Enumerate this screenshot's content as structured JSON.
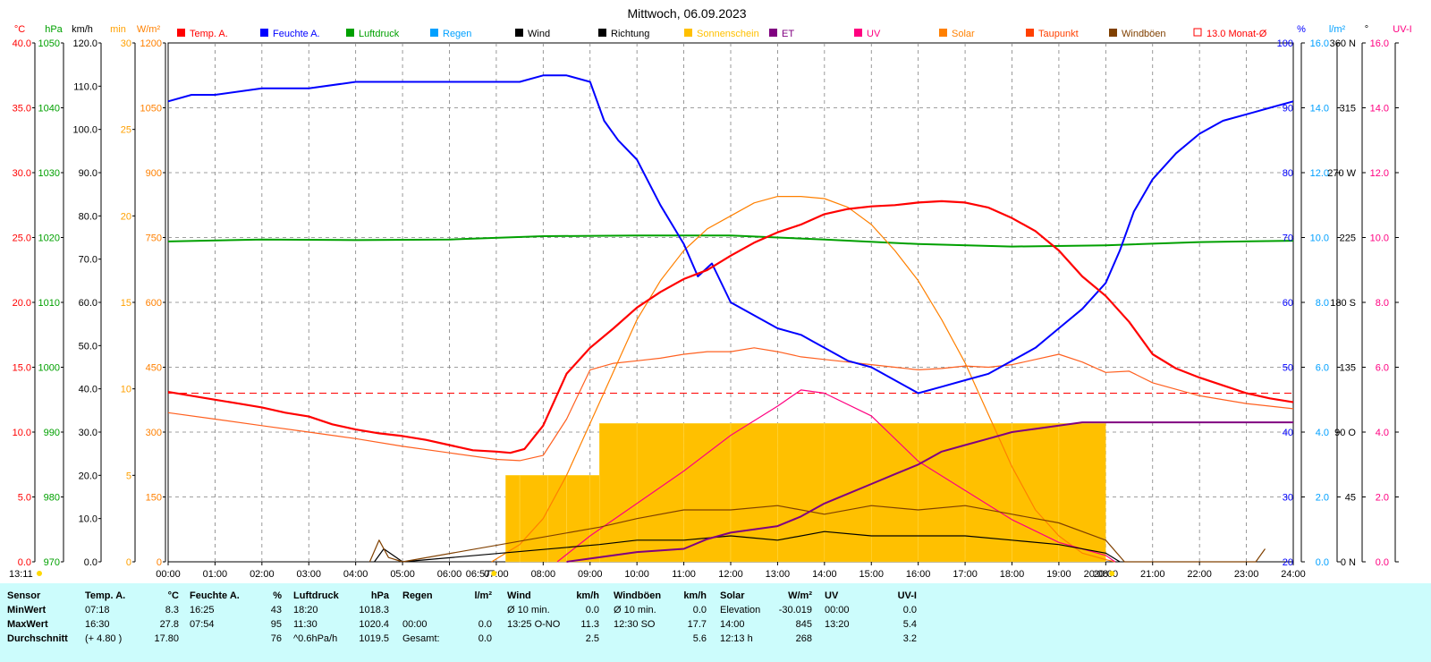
{
  "title": "Mittwoch, 06.09.2023",
  "left_axes": [
    {
      "unit": "°C",
      "color": "#ff0000",
      "ticks": [
        "0.0",
        "5.0",
        "10.0",
        "15.0",
        "20.0",
        "25.0",
        "30.0",
        "35.0",
        "40.0"
      ]
    },
    {
      "unit": "hPa",
      "color": "#00a000",
      "ticks": [
        "970",
        "980",
        "990",
        "1000",
        "1010",
        "1020",
        "1030",
        "1040",
        "1050"
      ]
    },
    {
      "unit": "km/h",
      "color": "#000000",
      "ticks": [
        "0.0",
        "10.0",
        "20.0",
        "30.0",
        "40.0",
        "50.0",
        "60.0",
        "70.0",
        "80.0",
        "90.0",
        "100.0",
        "110.0",
        "120.0"
      ]
    },
    {
      "unit": "min",
      "color": "#ffa000",
      "ticks": [
        "0",
        "5",
        "10",
        "15",
        "20",
        "25",
        "30"
      ]
    },
    {
      "unit": "W/m²",
      "color": "#ff8000",
      "ticks": [
        "0",
        "150",
        "300",
        "450",
        "600",
        "750",
        "900",
        "1050",
        "1200"
      ]
    }
  ],
  "right_axes": [
    {
      "unit": "%",
      "color": "#0000ff",
      "ticks": [
        "20",
        "30",
        "40",
        "50",
        "60",
        "70",
        "80",
        "90",
        "100"
      ]
    },
    {
      "unit": "l/m²",
      "color": "#00a0ff",
      "ticks": [
        "0.0",
        "2.0",
        "4.0",
        "6.0",
        "8.0",
        "10.0",
        "12.0",
        "14.0",
        "16.0"
      ]
    },
    {
      "unit": "°",
      "color": "#000000",
      "ticks": [
        "0 N",
        "45",
        "90 O",
        "135",
        "180 S",
        "225",
        "270 W",
        "315",
        "360 N"
      ]
    },
    {
      "unit": "UV-I",
      "color": "#ff0080",
      "ticks": [
        "0.0",
        "2.0",
        "4.0",
        "6.0",
        "8.0",
        "10.0",
        "12.0",
        "14.0",
        "16.0"
      ]
    }
  ],
  "legend": [
    {
      "label": "Temp. A.",
      "color": "#ff0000"
    },
    {
      "label": "Feuchte A.",
      "color": "#0000ff"
    },
    {
      "label": "Luftdruck",
      "color": "#00a000"
    },
    {
      "label": "Regen",
      "color": "#00a0ff"
    },
    {
      "label": "Wind",
      "color": "#000000"
    },
    {
      "label": "Richtung",
      "color": "#000000"
    },
    {
      "label": "Sonnenschein",
      "color": "#ffc000"
    },
    {
      "label": "ET",
      "color": "#800080"
    },
    {
      "label": "UV",
      "color": "#ff0080"
    },
    {
      "label": "Solar",
      "color": "#ff8000"
    },
    {
      "label": "Taupunkt",
      "color": "#ff4000"
    },
    {
      "label": "Windböen",
      "color": "#804000"
    },
    {
      "label": "13.0 Monat-Ø",
      "color": "#ff0000"
    }
  ],
  "x_ticks": [
    "00:00",
    "01:00",
    "02:00",
    "03:00",
    "04:00",
    "05:00",
    "06:00",
    "07:00",
    "08:00",
    "09:00",
    "10:00",
    "11:00",
    "12:00",
    "13:00",
    "14:00",
    "15:00",
    "16:00",
    "17:00",
    "18:00",
    "19:00",
    "20:00",
    "21:00",
    "22:00",
    "23:00",
    "24:00"
  ],
  "moon_time": "13:11",
  "sunrise": "06:57",
  "sunset": "20:08",
  "chart_data": {
    "type": "line",
    "title": "Mittwoch, 06.09.2023",
    "x_unit": "hour of day",
    "xlim": [
      0,
      24
    ],
    "temp_month_avg": 13.0,
    "series": [
      {
        "name": "Temp. A.",
        "unit": "°C",
        "x": [
          0,
          0.5,
          1,
          1.5,
          2,
          2.5,
          3,
          3.5,
          4,
          4.5,
          5,
          5.5,
          6,
          6.5,
          7,
          7.3,
          7.6,
          8,
          8.5,
          9,
          9.5,
          10,
          10.5,
          11,
          11.5,
          12,
          12.5,
          13,
          13.5,
          14,
          14.5,
          15,
          15.5,
          16,
          16.5,
          17,
          17.5,
          18,
          18.5,
          19,
          19.5,
          20,
          20.5,
          21,
          21.5,
          22,
          22.5,
          23,
          23.5,
          24
        ],
        "y": [
          13.1,
          12.8,
          12.5,
          12.2,
          11.9,
          11.5,
          11.2,
          10.6,
          10.2,
          9.9,
          9.7,
          9.4,
          9.0,
          8.6,
          8.5,
          8.4,
          8.7,
          10.5,
          14.5,
          16.5,
          18.0,
          19.6,
          20.8,
          21.8,
          22.5,
          23.6,
          24.6,
          25.4,
          26.0,
          26.8,
          27.2,
          27.4,
          27.5,
          27.7,
          27.8,
          27.7,
          27.3,
          26.5,
          25.5,
          24.0,
          22.0,
          20.5,
          18.5,
          16.0,
          14.9,
          14.2,
          13.6,
          13.0,
          12.6,
          12.3
        ]
      },
      {
        "name": "Feuchte A.",
        "unit": "%",
        "x": [
          0,
          0.5,
          1,
          2,
          3,
          4,
          5,
          6,
          7,
          7.5,
          8,
          8.5,
          9,
          9.3,
          9.6,
          10,
          10.5,
          11,
          11.3,
          11.6,
          12,
          12.5,
          13,
          13.5,
          14,
          14.5,
          15,
          15.5,
          16,
          16.5,
          17,
          17.5,
          18,
          18.5,
          19,
          19.5,
          20,
          20.3,
          20.6,
          21,
          21.5,
          22,
          22.5,
          23,
          23.5,
          24
        ],
        "y": [
          91,
          92,
          92,
          93,
          93,
          94,
          94,
          94,
          94,
          94,
          95,
          95,
          94,
          88,
          85,
          82,
          75,
          69,
          64,
          66,
          60,
          58,
          56,
          55,
          53,
          51,
          50,
          48,
          46,
          47,
          48,
          49,
          51,
          53,
          56,
          59,
          63,
          68,
          74,
          79,
          83,
          86,
          88,
          89,
          90,
          91
        ]
      },
      {
        "name": "Luftdruck",
        "unit": "hPa",
        "x": [
          0,
          2,
          4,
          6,
          8,
          10,
          12,
          14,
          16,
          18,
          20,
          22,
          24
        ],
        "y": [
          1019.4,
          1019.7,
          1019.6,
          1019.7,
          1020.2,
          1020.3,
          1020.3,
          1019.7,
          1019.0,
          1018.6,
          1018.8,
          1019.3,
          1019.5
        ]
      },
      {
        "name": "Solar",
        "unit": "W/m²",
        "x": [
          6.9,
          7.5,
          8,
          8.5,
          9,
          9.5,
          10,
          10.5,
          11,
          11.5,
          12,
          12.5,
          13,
          13.5,
          14,
          14.5,
          15,
          15.5,
          16,
          16.5,
          17,
          17.5,
          18,
          18.5,
          19,
          19.5,
          20,
          20.2
        ],
        "y": [
          0,
          40,
          100,
          200,
          320,
          440,
          560,
          650,
          720,
          770,
          800,
          830,
          845,
          845,
          840,
          820,
          780,
          720,
          650,
          560,
          460,
          340,
          220,
          120,
          60,
          20,
          5,
          0
        ]
      },
      {
        "name": "UV",
        "unit": "UV-I",
        "x": [
          8.3,
          9,
          10,
          11,
          12,
          13,
          13.5,
          14,
          15,
          16,
          17,
          18,
          19,
          20,
          20.2
        ],
        "y": [
          0,
          0.8,
          1.8,
          2.8,
          3.9,
          4.8,
          5.3,
          5.2,
          4.5,
          3.1,
          2.2,
          1.3,
          0.6,
          0.2,
          0
        ]
      },
      {
        "name": "ET",
        "unit": "l/m²",
        "x": [
          8.5,
          9.5,
          10,
          11,
          11.5,
          12,
          13,
          13.5,
          14,
          14.5,
          15,
          15.5,
          16,
          16.5,
          17,
          17.5,
          18,
          18.5,
          19,
          19.5,
          20,
          24
        ],
        "y": [
          0,
          0.2,
          0.3,
          0.4,
          0.7,
          0.9,
          1.1,
          1.4,
          1.8,
          2.1,
          2.4,
          2.7,
          3.0,
          3.4,
          3.6,
          3.8,
          4.0,
          4.1,
          4.2,
          4.3,
          4.3,
          4.3
        ]
      },
      {
        "name": "Taupunkt",
        "unit": "°C",
        "x": [
          0,
          1,
          2,
          3,
          4,
          5,
          6,
          7,
          7.5,
          8,
          8.5,
          9,
          9.5,
          10,
          10.5,
          11,
          11.5,
          12,
          12.5,
          13,
          13.5,
          14,
          14.5,
          15,
          15.5,
          16,
          16.5,
          17,
          17.5,
          18,
          18.5,
          19,
          19.5,
          20,
          20.5,
          21,
          22,
          23,
          24
        ],
        "y": [
          11.5,
          11.0,
          10.5,
          10.0,
          9.5,
          8.9,
          8.4,
          7.9,
          7.8,
          8.2,
          11,
          14.8,
          15.3,
          15.5,
          15.7,
          16.0,
          16.2,
          16.2,
          16.5,
          16.2,
          15.8,
          15.6,
          15.4,
          15.2,
          15.0,
          14.8,
          14.9,
          15.1,
          15.0,
          15.2,
          15.6,
          16.0,
          15.4,
          14.6,
          14.7,
          13.8,
          12.8,
          12.2,
          11.8
        ]
      },
      {
        "name": "Wind",
        "unit": "km/h",
        "x": [
          4.4,
          4.6,
          5,
          9.2,
          10,
          11,
          12,
          13,
          14,
          15,
          16,
          17,
          18,
          19,
          20,
          20.3
        ],
        "y": [
          0,
          3,
          0,
          4,
          5,
          5,
          6,
          5,
          7,
          6,
          6,
          6,
          5,
          4,
          2,
          0
        ]
      },
      {
        "name": "Windböen",
        "unit": "km/h",
        "x": [
          4.3,
          4.5,
          4.7,
          5,
          9.2,
          10,
          11,
          12,
          13,
          14,
          15,
          16,
          17,
          18,
          19,
          20,
          20.4,
          23.2,
          23.4
        ],
        "y": [
          0,
          5,
          1,
          0,
          8,
          10,
          12,
          12,
          13,
          11,
          13,
          12,
          13,
          11,
          9,
          5,
          0,
          0,
          3
        ]
      },
      {
        "name": "Sonnenschein",
        "unit": "min",
        "x": [
          7.2,
          7.5,
          8.1,
          8.5,
          9,
          9.2,
          10,
          11,
          12,
          13,
          14,
          15,
          16,
          17,
          18,
          19,
          20
        ],
        "y": [
          5,
          5,
          5,
          5,
          5,
          8,
          8,
          8,
          8,
          8,
          8,
          8,
          8,
          8,
          8,
          8,
          8
        ]
      }
    ]
  },
  "stats": {
    "header": [
      "Sensor",
      "Temp. A.",
      "°C",
      "Feuchte A.",
      "%",
      "Luftdruck",
      "hPa",
      "Regen",
      "l/m²",
      "Wind",
      "km/h",
      "Windböen",
      "km/h",
      "Solar",
      "W/m²",
      "UV",
      "UV-I"
    ],
    "rows": [
      {
        "label": "MinWert",
        "cells": [
          "07:18",
          "8.3",
          "16:25",
          "43",
          "18:20",
          "1018.3",
          "",
          "",
          "Ø 10 min.",
          "0.0",
          "Ø 10 min.",
          "0.0",
          "Elevation",
          "-30.019",
          "00:00",
          "0.0"
        ]
      },
      {
        "label": "MaxWert",
        "cells": [
          "16:30",
          "27.8",
          "07:54",
          "95",
          "11:30",
          "1020.4",
          "00:00",
          "0.0",
          "13:25   O-NO",
          "11.3",
          "12:30    SO",
          "17.7",
          "14:00",
          "845",
          "13:20",
          "5.4"
        ]
      },
      {
        "label": "Durchschnitt",
        "cells": [
          "(+ 4.80 )",
          "17.80",
          "",
          "76",
          "^0.6hPa/h",
          "1019.5",
          "Gesamt:",
          "0.0",
          "",
          "2.5",
          "",
          "5.6",
          "12:13 h",
          "268",
          "",
          "3.2"
        ]
      }
    ]
  }
}
